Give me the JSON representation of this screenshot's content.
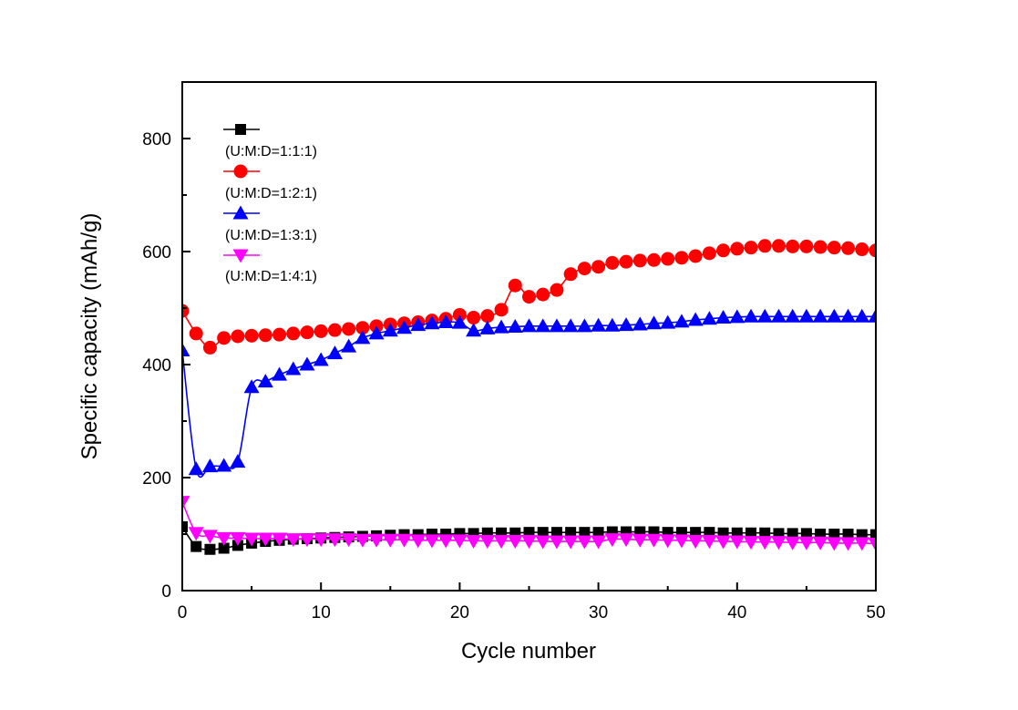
{
  "chart_data": {
    "type": "line",
    "title": "",
    "xlabel": "Cycle number",
    "ylabel": "Specific capacity (mAh/g)",
    "xlim": [
      0,
      50
    ],
    "ylim": [
      0,
      900
    ],
    "xticks": [
      0,
      10,
      20,
      30,
      40,
      50
    ],
    "xtick_labels": [
      "0",
      "10",
      "20",
      "30",
      "40",
      "50"
    ],
    "x_minor_ticks": [
      5,
      15,
      25,
      35,
      45
    ],
    "yticks": [
      0,
      200,
      400,
      600,
      800
    ],
    "ytick_labels": [
      "0",
      "200",
      "400",
      "600",
      "800"
    ],
    "y_minor_ticks": [
      100,
      300,
      500,
      700
    ],
    "grid": false,
    "legend_position": "top-left",
    "x": [
      0,
      1,
      2,
      3,
      4,
      5,
      6,
      7,
      8,
      9,
      10,
      11,
      12,
      13,
      14,
      15,
      16,
      17,
      18,
      19,
      20,
      21,
      22,
      23,
      24,
      25,
      26,
      27,
      28,
      29,
      30,
      31,
      32,
      33,
      34,
      35,
      36,
      37,
      38,
      39,
      40,
      41,
      42,
      43,
      44,
      45,
      46,
      47,
      48,
      49,
      50
    ],
    "series": [
      {
        "name": "(U:M:D=1:1:1)",
        "color": "#000000",
        "marker": "square",
        "values": [
          113,
          78,
          73,
          75,
          80,
          84,
          87,
          89,
          91,
          92,
          93,
          94,
          95,
          96,
          97,
          98,
          99,
          99,
          100,
          100,
          101,
          101,
          102,
          102,
          102,
          103,
          103,
          103,
          103,
          103,
          103,
          104,
          104,
          104,
          104,
          103,
          103,
          103,
          103,
          102,
          102,
          102,
          102,
          101,
          101,
          101,
          100,
          100,
          100,
          99,
          99
        ]
      },
      {
        "name": "(U:M:D=1:2:1)",
        "color": "#ff0000",
        "marker": "circle",
        "values": [
          495,
          455,
          430,
          447,
          450,
          451,
          452,
          453,
          455,
          457,
          459,
          461,
          463,
          465,
          468,
          471,
          473,
          475,
          478,
          481,
          488,
          483,
          486,
          497,
          540,
          520,
          524,
          532,
          560,
          570,
          573,
          580,
          582,
          584,
          585,
          587,
          589,
          592,
          597,
          602,
          605,
          607,
          610,
          610,
          609,
          609,
          608,
          607,
          606,
          604,
          602
        ]
      },
      {
        "name": "(U:M:D=1:3:1)",
        "color": "#0000ff",
        "marker": "triangle-up",
        "values": [
          425,
          215,
          220,
          221,
          228,
          360,
          370,
          382,
          392,
          400,
          408,
          420,
          432,
          447,
          455,
          460,
          465,
          470,
          473,
          475,
          474,
          460,
          464,
          466,
          467,
          468,
          468,
          468,
          468,
          468,
          469,
          469,
          470,
          471,
          473,
          474,
          476,
          479,
          481,
          483,
          484,
          485,
          485,
          485,
          485,
          485,
          485,
          485,
          485,
          485,
          485
        ]
      },
      {
        "name": "(U:M:D=1:4:1)",
        "color": "#ff00ff",
        "marker": "triangle-down",
        "values": [
          157,
          102,
          97,
          93,
          93,
          92,
          92,
          92,
          91,
          91,
          91,
          91,
          91,
          90,
          90,
          90,
          90,
          89,
          89,
          89,
          89,
          88,
          88,
          88,
          88,
          88,
          87,
          87,
          87,
          87,
          87,
          91,
          91,
          90,
          90,
          89,
          89,
          88,
          88,
          87,
          87,
          86,
          86,
          86,
          85,
          85,
          85,
          84,
          84,
          84,
          83
        ]
      }
    ]
  }
}
